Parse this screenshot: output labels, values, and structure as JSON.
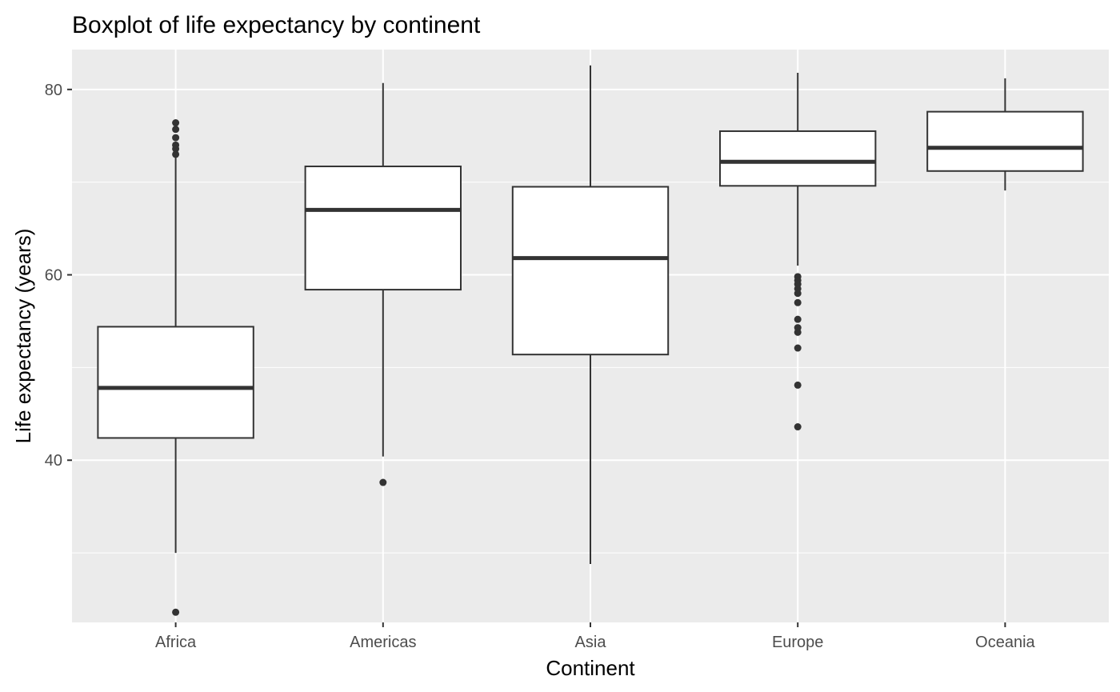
{
  "chart_data": {
    "type": "boxplot",
    "title": "Boxplot of life expectancy by continent",
    "xlabel": "Continent",
    "ylabel": "Life expectancy (years)",
    "ylim": [
      22.5,
      84.3
    ],
    "yticks": [
      40,
      60,
      80
    ],
    "y_minor_ticks": [
      30,
      50,
      70
    ],
    "grid": true,
    "colors": {
      "panel": "#ebebeb",
      "grid": "#ffffff",
      "box_fill": "#ffffff",
      "line": "#333333"
    },
    "categories": [
      "Africa",
      "Americas",
      "Asia",
      "Europe",
      "Oceania"
    ],
    "boxes": [
      {
        "category": "Africa",
        "lower_whisker": 30.0,
        "q1": 42.4,
        "median": 47.8,
        "q3": 54.4,
        "upper_whisker": 72.8,
        "outliers": [
          76.4,
          75.7,
          74.8,
          74.0,
          73.6,
          73.0,
          23.6
        ]
      },
      {
        "category": "Americas",
        "lower_whisker": 40.4,
        "q1": 58.4,
        "median": 67.0,
        "q3": 71.7,
        "upper_whisker": 80.7,
        "outliers": [
          37.6
        ]
      },
      {
        "category": "Asia",
        "lower_whisker": 28.8,
        "q1": 51.4,
        "median": 61.8,
        "q3": 69.5,
        "upper_whisker": 82.6,
        "outliers": []
      },
      {
        "category": "Europe",
        "lower_whisker": 61.0,
        "q1": 69.6,
        "median": 72.2,
        "q3": 75.5,
        "upper_whisker": 81.8,
        "outliers": [
          59.8,
          59.4,
          59.0,
          58.5,
          58.0,
          57.0,
          55.2,
          54.3,
          53.8,
          52.1,
          48.1,
          43.6
        ]
      },
      {
        "category": "Oceania",
        "lower_whisker": 69.1,
        "q1": 71.2,
        "median": 73.7,
        "q3": 77.6,
        "upper_whisker": 81.2,
        "outliers": []
      }
    ]
  }
}
